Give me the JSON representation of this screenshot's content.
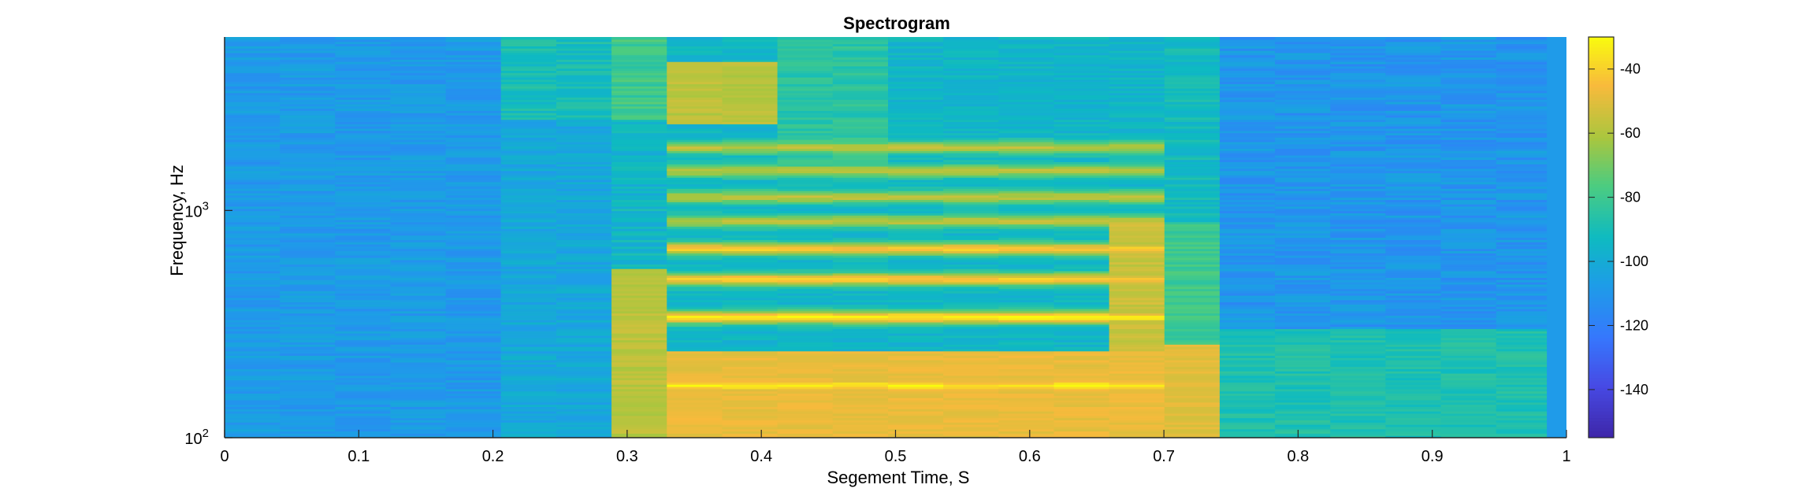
{
  "chart_data": {
    "type": "heatmap",
    "title": "Spectrogram",
    "xlabel": "Segement Time, S",
    "ylabel": "Frequency, Hz",
    "xlim": [
      0,
      1
    ],
    "x_ticks": [
      "0",
      "0.1",
      "0.2",
      "0.3",
      "0.4",
      "0.5",
      "0.6",
      "0.7",
      "0.8",
      "0.9",
      "1"
    ],
    "y_scale": "log",
    "y_ticks": [
      {
        "base": "10",
        "exponent": "2"
      },
      {
        "base": "10",
        "exponent": "3"
      }
    ],
    "y_range_hz": [
      100,
      5800
    ],
    "colorbar": {
      "range": [
        -155,
        -30
      ],
      "ticks": [
        "-40",
        "-60",
        "-80",
        "-100",
        "-120",
        "-140"
      ],
      "colormap": "parula"
    },
    "segments": 24,
    "segment_width_s": 0.0412,
    "grid": false,
    "description_of_energy": "High energy (about -35 to -55 dB) from 0.29 s to 0.74 s with harmonic bands near 170, 340, 500, 680, 900 Hz; background about -100 to -115 dB"
  }
}
